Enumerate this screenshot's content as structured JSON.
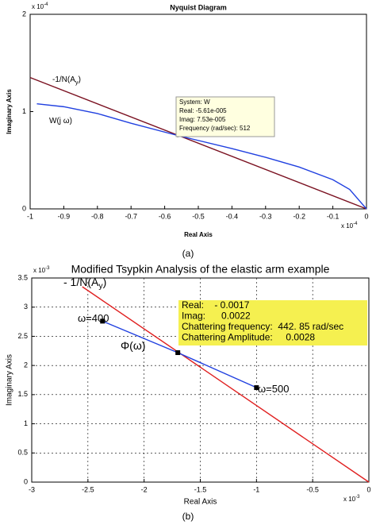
{
  "chart_data": [
    {
      "type": "line",
      "title": "Nyquist Diagram",
      "x_label": "Real Axis",
      "y_label": "Imaginary Axis",
      "exponent_base": "x 10",
      "x_exponent": "-4",
      "y_exponent": "-4",
      "xlim": [
        -1,
        0
      ],
      "ylim": [
        0,
        2
      ],
      "xticks": [
        -1,
        -0.9,
        -0.8,
        -0.7,
        -0.6,
        -0.5,
        -0.4,
        -0.3,
        -0.2,
        -0.1,
        0
      ],
      "yticks": [
        0,
        1,
        2
      ],
      "grid": false,
      "series": [
        {
          "color": "#7a1020",
          "x": [
            -1,
            0
          ],
          "values": [
            1.35,
            0
          ]
        },
        {
          "color": "#2040e0",
          "x": [
            -0.98,
            -0.9,
            -0.8,
            -0.7,
            -0.56,
            -0.4,
            -0.3,
            -0.2,
            -0.1,
            -0.05,
            0
          ],
          "values": [
            1.08,
            1.05,
            0.98,
            0.88,
            0.753,
            0.62,
            0.53,
            0.43,
            0.3,
            0.2,
            0
          ]
        }
      ],
      "points": {
        "x": [
          -0.561
        ],
        "values": [
          0.753
        ]
      },
      "annotations": [
        {
          "text": "-1/N(A",
          "sub": "y",
          "tail": ")"
        },
        {
          "text": "W(j ω)"
        }
      ],
      "datatip": [
        "System: W",
        "Real: -5.61e-005",
        "Imag: 7.53e-005",
        "Frequency (rad/sec): 512"
      ],
      "caption": "(a)"
    },
    {
      "type": "line",
      "title": "Modified Tsypkin Analysis of the elastic arm example",
      "x_label": "Real Axis",
      "y_label": "Imaginary Axis",
      "exponent_base": "x 10",
      "x_exponent": "-3",
      "y_exponent": "-3",
      "xlim": [
        -3,
        0
      ],
      "ylim": [
        0,
        3.5
      ],
      "xticks": [
        -3,
        -2.5,
        -2,
        -1.5,
        -1,
        -0.5,
        0
      ],
      "yticks": [
        0,
        0.5,
        1,
        1.5,
        2,
        2.5,
        3,
        3.5
      ],
      "grid": true,
      "series": [
        {
          "color": "#e02020",
          "x": [
            -2.55,
            0
          ],
          "values": [
            3.35,
            0
          ]
        },
        {
          "color": "#2040e0",
          "x": [
            -2.37,
            -1.7,
            -1.0
          ],
          "values": [
            2.76,
            2.22,
            1.62
          ]
        }
      ],
      "points": {
        "x": [
          -2.37,
          -1.7,
          -1.0
        ],
        "values": [
          2.76,
          2.22,
          1.62
        ]
      },
      "annotations": [
        {
          "text": "- 1/N(A",
          "sub": "y",
          "tail": ")"
        },
        {
          "text": "ω=400"
        },
        {
          "text": "Φ(ω)"
        },
        {
          "text": "ω=500"
        }
      ],
      "datatip": [
        "Real:    - 0.0017",
        "Imag:      0.0022",
        "Chattering frequency:  442. 85 rad/sec",
        "Chattering Amplitude:     0.0028"
      ],
      "caption": "(b)"
    }
  ]
}
